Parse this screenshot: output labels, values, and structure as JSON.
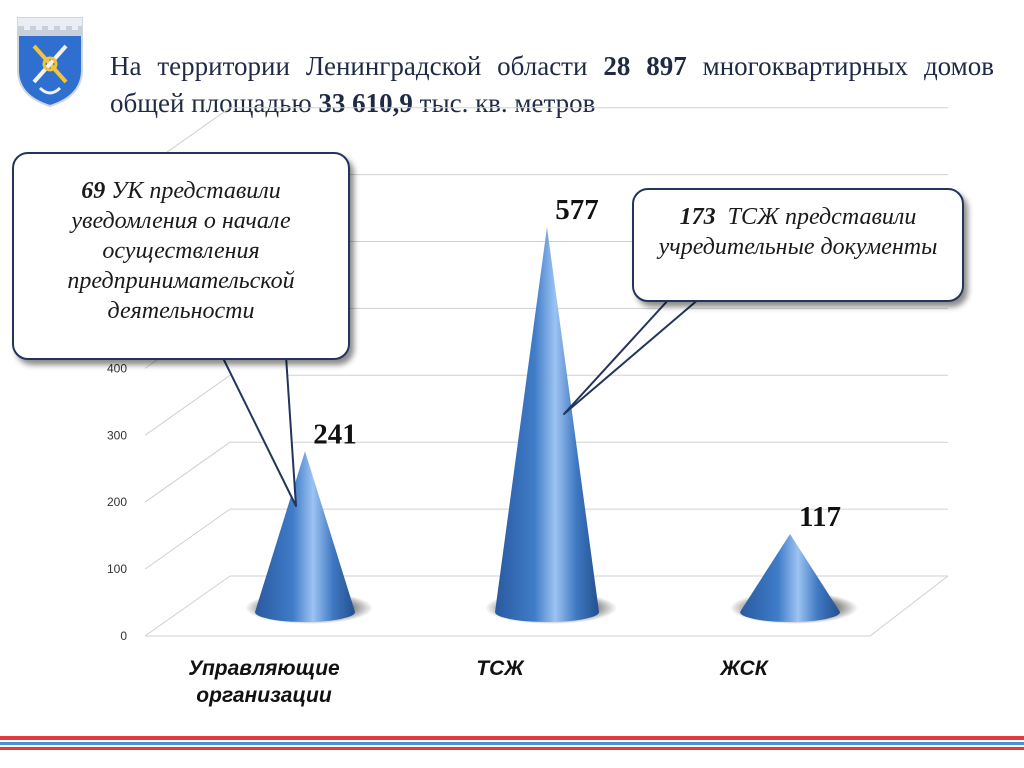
{
  "header": {
    "title_part1": "На территории Ленинградской области ",
    "title_bold1": "28 897",
    "title_part2": " многоквартирных домов общей площадью ",
    "title_bold2": "33 610,9",
    "title_part3": " тыс. кв. метров"
  },
  "callouts": {
    "left_number": "69",
    "left_text": "УК представили уведомления о начале осуществления предпринимательской деятельности",
    "right_number": "173",
    "right_text": "ТСЖ представили учредительные документы"
  },
  "colors": {
    "cone": "#3a6fb8",
    "cone_light": "#9cc3f2",
    "text": "#1f2a44",
    "stripe_red": "#e23b3b",
    "stripe_blue": "#4a8fd8"
  },
  "chart_data": {
    "type": "bar",
    "style": "3d-cone",
    "categories": [
      "Управляющие организации",
      "ТСЖ",
      "ЖСК"
    ],
    "category_lines": [
      [
        "Управляющие",
        "организации"
      ],
      [
        "ТСЖ"
      ],
      [
        "ЖСК"
      ]
    ],
    "values": [
      241,
      577,
      117
    ],
    "value_labels": [
      "241",
      "577",
      "117"
    ],
    "y_ticks": [
      "0",
      "100",
      "200",
      "300",
      "400"
    ],
    "ylim": [
      0,
      700
    ],
    "grid": true
  }
}
